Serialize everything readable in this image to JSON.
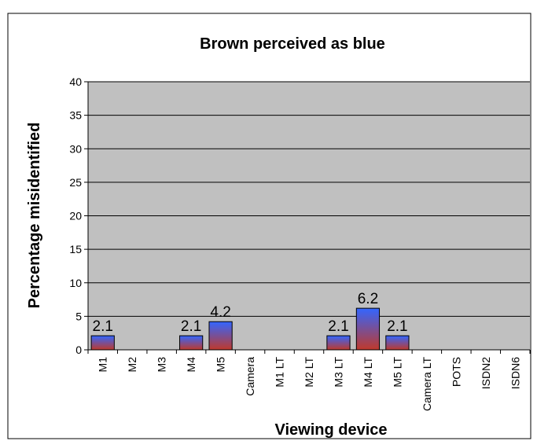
{
  "chart_data": {
    "type": "bar",
    "title": "Brown perceived as blue",
    "xlabel": "Viewing device",
    "ylabel": "Percentage misidentified",
    "ylim": [
      0,
      40
    ],
    "yticks": [
      0,
      5,
      10,
      15,
      20,
      25,
      30,
      35,
      40
    ],
    "grid": true,
    "legend": "none",
    "categories": [
      "M1",
      "M2",
      "M3",
      "M4",
      "M5",
      "Camera",
      "M1 LT",
      "M2 LT",
      "M3 LT",
      "M4 LT",
      "M5 LT",
      "Camera LT",
      "POTS",
      "ISDN2",
      "ISDN6"
    ],
    "values": [
      2.1,
      0,
      0,
      2.1,
      4.2,
      0,
      0,
      0,
      2.1,
      6.2,
      2.1,
      0,
      0,
      0,
      0
    ],
    "data_labels": [
      "2.1",
      "",
      "",
      "2.1",
      "4.2",
      "",
      "",
      "",
      "2.1",
      "6.2",
      "2.1",
      "",
      "",
      "",
      ""
    ],
    "colors": {
      "plot_background": "#C0C0C0",
      "gridline": "#000000",
      "bar_top": "#3366FF",
      "bar_bottom": "#C0392B",
      "bar_edge": "#000000"
    }
  }
}
